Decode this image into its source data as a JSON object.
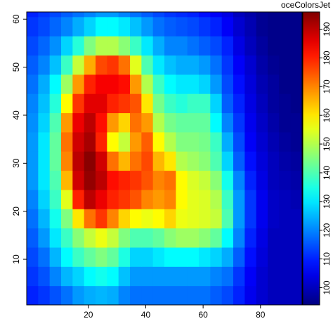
{
  "chart_data": {
    "type": "heatmap",
    "colormap": "jet",
    "colorbar_title": "oceColorsJet",
    "x": [
      0.5,
      4.5,
      8.5,
      12.5,
      16.5,
      20.5,
      24.5,
      28.5,
      32.5,
      36.5,
      40.5,
      44.5,
      48.5,
      52.5,
      56.5,
      60.5,
      64.5,
      68.5,
      72.5,
      76.5,
      80.5,
      84.5,
      88.5,
      92.5
    ],
    "y": [
      2.5,
      6.5,
      10.5,
      14.5,
      18.5,
      22.5,
      26.5,
      30.5,
      34.5,
      38.5,
      42.5,
      46.5,
      50.5,
      54.5,
      58.5,
      62.5
    ],
    "z": [
      [
        110,
        112,
        115,
        118,
        122,
        124,
        125,
        124,
        120,
        118,
        118,
        118,
        118,
        118,
        118,
        118,
        116,
        114,
        110,
        105,
        102,
        100,
        100,
        100
      ],
      [
        112,
        115,
        120,
        125,
        128,
        132,
        134,
        132,
        126,
        122,
        122,
        122,
        122,
        122,
        122,
        122,
        120,
        118,
        112,
        106,
        102,
        100,
        100,
        100
      ],
      [
        114,
        118,
        125,
        132,
        138,
        142,
        145,
        142,
        135,
        128,
        128,
        130,
        132,
        132,
        132,
        130,
        128,
        124,
        116,
        108,
        103,
        100,
        100,
        100
      ],
      [
        116,
        122,
        130,
        138,
        146,
        152,
        156,
        152,
        145,
        140,
        140,
        142,
        146,
        148,
        148,
        146,
        142,
        132,
        120,
        110,
        104,
        100,
        100,
        100
      ],
      [
        118,
        125,
        134,
        145,
        160,
        172,
        178,
        170,
        162,
        158,
        156,
        158,
        162,
        156,
        155,
        154,
        152,
        140,
        122,
        112,
        105,
        101,
        100,
        100
      ],
      [
        120,
        128,
        138,
        155,
        180,
        190,
        185,
        180,
        178,
        175,
        170,
        168,
        170,
        158,
        155,
        154,
        150,
        138,
        122,
        112,
        105,
        101,
        100,
        99
      ],
      [
        122,
        130,
        140,
        165,
        188,
        194,
        190,
        182,
        180,
        178,
        175,
        170,
        172,
        158,
        154,
        152,
        146,
        134,
        120,
        110,
        104,
        100,
        99,
        98
      ],
      [
        122,
        130,
        142,
        170,
        190,
        195,
        188,
        172,
        165,
        172,
        176,
        165,
        160,
        150,
        148,
        146,
        140,
        128,
        116,
        108,
        103,
        100,
        98,
        97
      ],
      [
        122,
        130,
        142,
        172,
        188,
        192,
        180,
        158,
        152,
        168,
        174,
        158,
        150,
        145,
        145,
        144,
        138,
        124,
        114,
        106,
        102,
        99,
        97,
        96
      ],
      [
        121,
        128,
        140,
        168,
        185,
        190,
        182,
        168,
        162,
        172,
        168,
        150,
        144,
        142,
        142,
        142,
        132,
        120,
        112,
        105,
        101,
        98,
        96,
        96
      ],
      [
        120,
        126,
        136,
        158,
        178,
        186,
        186,
        180,
        178,
        175,
        160,
        144,
        138,
        136,
        138,
        138,
        128,
        116,
        110,
        104,
        100,
        97,
        96,
        95
      ],
      [
        118,
        124,
        132,
        148,
        168,
        180,
        184,
        184,
        182,
        168,
        150,
        138,
        132,
        130,
        130,
        128,
        122,
        114,
        108,
        103,
        99,
        97,
        95,
        95
      ],
      [
        116,
        120,
        126,
        138,
        152,
        166,
        176,
        178,
        172,
        155,
        140,
        130,
        126,
        124,
        124,
        122,
        118,
        112,
        106,
        102,
        98,
        96,
        95,
        95
      ],
      [
        114,
        117,
        121,
        128,
        136,
        145,
        150,
        150,
        146,
        138,
        130,
        124,
        120,
        120,
        118,
        116,
        114,
        110,
        104,
        100,
        97,
        95,
        95,
        95
      ],
      [
        112,
        114,
        117,
        120,
        124,
        128,
        132,
        132,
        130,
        126,
        122,
        118,
        116,
        115,
        114,
        112,
        110,
        106,
        102,
        99,
        96,
        95,
        95,
        95
      ],
      [
        110,
        112,
        114,
        116,
        118,
        120,
        122,
        122,
        120,
        118,
        116,
        114,
        112,
        111,
        110,
        108,
        106,
        104,
        100,
        98,
        96,
        95,
        95,
        95
      ]
    ],
    "xlim": [
      -1.5,
      94.5
    ],
    "ylim": [
      0.5,
      61.5
    ],
    "zlim": [
      94,
      196
    ],
    "xticks": [
      20,
      40,
      60,
      80
    ],
    "yticks": [
      10,
      20,
      30,
      40,
      50,
      60
    ],
    "zticks": [
      100,
      110,
      120,
      130,
      140,
      150,
      160,
      170,
      180,
      190
    ]
  }
}
